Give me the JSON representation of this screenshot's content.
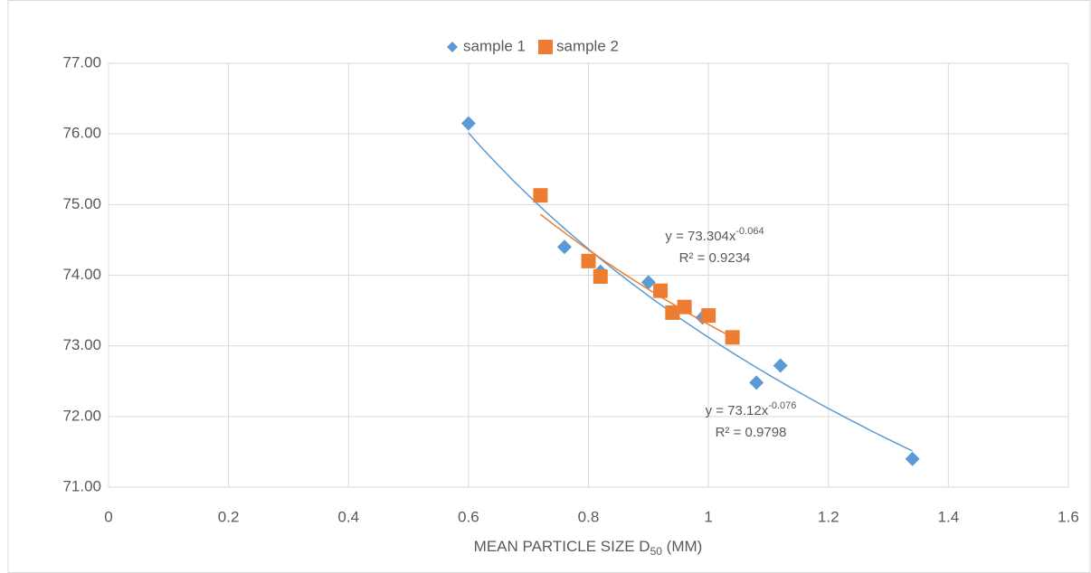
{
  "chart_data": {
    "type": "scatter",
    "x_label": "MEAN PARTICLE SIZE D",
    "x_label_sub": "50",
    "x_label_suffix": " (MM)",
    "xlim": [
      0,
      1.6
    ],
    "xticks": [
      0,
      0.2,
      0.4,
      0.6,
      0.8,
      1,
      1.2,
      1.4,
      1.6
    ],
    "ylim": [
      71,
      77
    ],
    "yticks": [
      {
        "value": 71,
        "label": "71.00"
      },
      {
        "value": 72,
        "label": "72.00"
      },
      {
        "value": 73,
        "label": "73.00"
      },
      {
        "value": 74,
        "label": "74.00"
      },
      {
        "value": 75,
        "label": "75.00"
      },
      {
        "value": 76,
        "label": "76.00"
      },
      {
        "value": 77,
        "label": "77.00"
      }
    ],
    "grid": true,
    "legend": "top",
    "series": [
      {
        "name": "sample 1",
        "color": "#5b9bd5",
        "marker": "diamond",
        "x": [
          0.6,
          0.76,
          0.82,
          0.9,
          0.99,
          1.08,
          1.12,
          1.34
        ],
        "values": [
          76.15,
          74.4,
          74.05,
          73.9,
          73.4,
          72.48,
          72.72,
          71.4
        ],
        "trendline": {
          "a": 73.12,
          "b": -0.076,
          "equation": "y = 73.12x",
          "exponent": "-0.076",
          "r2_label": "R² = 0.9798"
        }
      },
      {
        "name": "sample 2",
        "color": "#ed7d31",
        "marker": "square",
        "x": [
          0.72,
          0.8,
          0.82,
          0.92,
          0.94,
          0.96,
          1.0,
          1.04
        ],
        "values": [
          75.13,
          74.2,
          73.98,
          73.78,
          73.47,
          73.55,
          73.43,
          73.12
        ],
        "trendline": {
          "a": 73.304,
          "b": -0.064,
          "equation": "y = 73.304x",
          "exponent": "-0.064",
          "r2_label": "R² = 0.9234"
        }
      }
    ]
  }
}
